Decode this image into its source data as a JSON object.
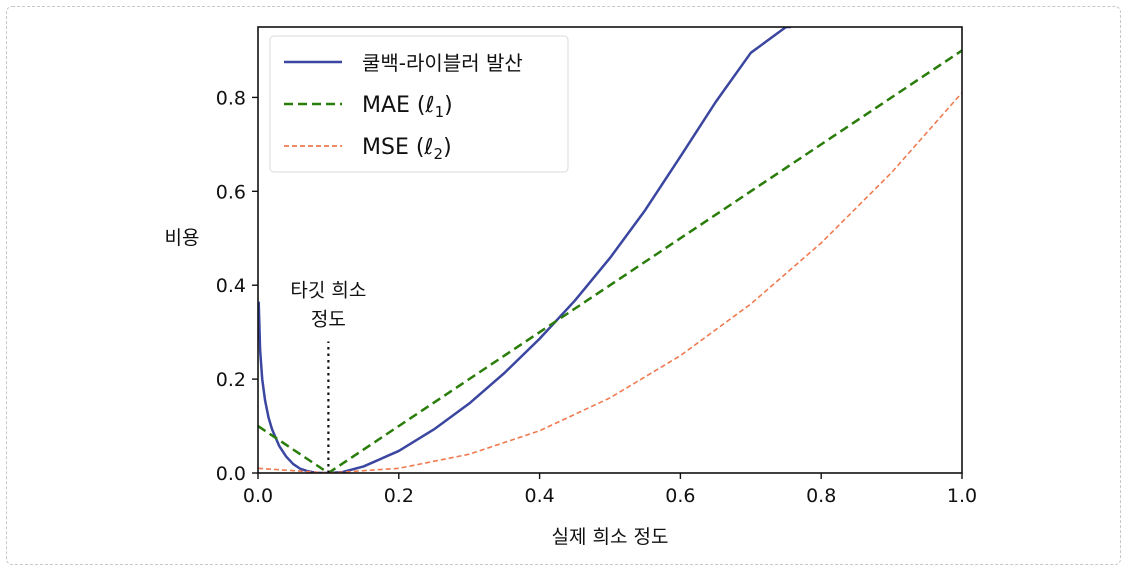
{
  "chart_data": {
    "type": "line",
    "ylabel": "비용",
    "xlabel": "실제 희소 정도",
    "xlim": [
      0.0,
      1.0
    ],
    "ylim": [
      0.0,
      0.95
    ],
    "xticks": [
      0.0,
      0.2,
      0.4,
      0.6,
      0.8,
      1.0
    ],
    "xtick_labels": [
      "0.0",
      "0.2",
      "0.4",
      "0.6",
      "0.8",
      "1.0"
    ],
    "yticks": [
      0.0,
      0.2,
      0.4,
      0.6,
      0.8
    ],
    "ytick_labels": [
      "0.0",
      "0.2",
      "0.4",
      "0.6",
      "0.8"
    ],
    "grid": false,
    "legend_position": "top-left",
    "target_sparsity": 0.1,
    "annotation": {
      "line1": "타깃 희소",
      "line2": "정도",
      "x": 0.1,
      "y_from": 0.0,
      "y_to": 0.28
    },
    "series": [
      {
        "name": "쿨백-라이블러 발산",
        "style": "solid",
        "color": "#3a46a0",
        "x": [
          0.001,
          0.003,
          0.006,
          0.01,
          0.015,
          0.02,
          0.03,
          0.04,
          0.05,
          0.06,
          0.07,
          0.08,
          0.09,
          0.1,
          0.12,
          0.15,
          0.2,
          0.25,
          0.3,
          0.35,
          0.4,
          0.45,
          0.5,
          0.55,
          0.6,
          0.65,
          0.7,
          0.75,
          0.757
        ],
        "values": [
          0.365,
          0.262,
          0.2,
          0.155,
          0.118,
          0.093,
          0.058,
          0.035,
          0.019,
          0.009,
          0.004,
          0.001,
          0.0,
          0.0,
          0.002,
          0.014,
          0.047,
          0.093,
          0.148,
          0.213,
          0.286,
          0.367,
          0.458,
          0.56,
          0.674,
          0.79,
          0.895,
          0.95,
          0.95
        ]
      },
      {
        "name": "MAE (ℓ1)",
        "label_text": "MAE (ℓ",
        "label_sub": "1",
        "label_end": ")",
        "style": "dashed",
        "color": "#2a7d0a",
        "x": [
          0.0,
          0.1,
          1.0
        ],
        "values": [
          0.1,
          0.0,
          0.9
        ]
      },
      {
        "name": "MSE (ℓ2)",
        "label_text": "MSE (ℓ",
        "label_sub": "2",
        "label_end": ")",
        "style": "dashed",
        "color": "#f07a50",
        "x": [
          0.0,
          0.1,
          0.2,
          0.3,
          0.4,
          0.5,
          0.6,
          0.7,
          0.8,
          0.9,
          1.0
        ],
        "values": [
          0.01,
          0.0,
          0.01,
          0.04,
          0.09,
          0.16,
          0.25,
          0.36,
          0.49,
          0.64,
          0.81
        ]
      }
    ]
  }
}
